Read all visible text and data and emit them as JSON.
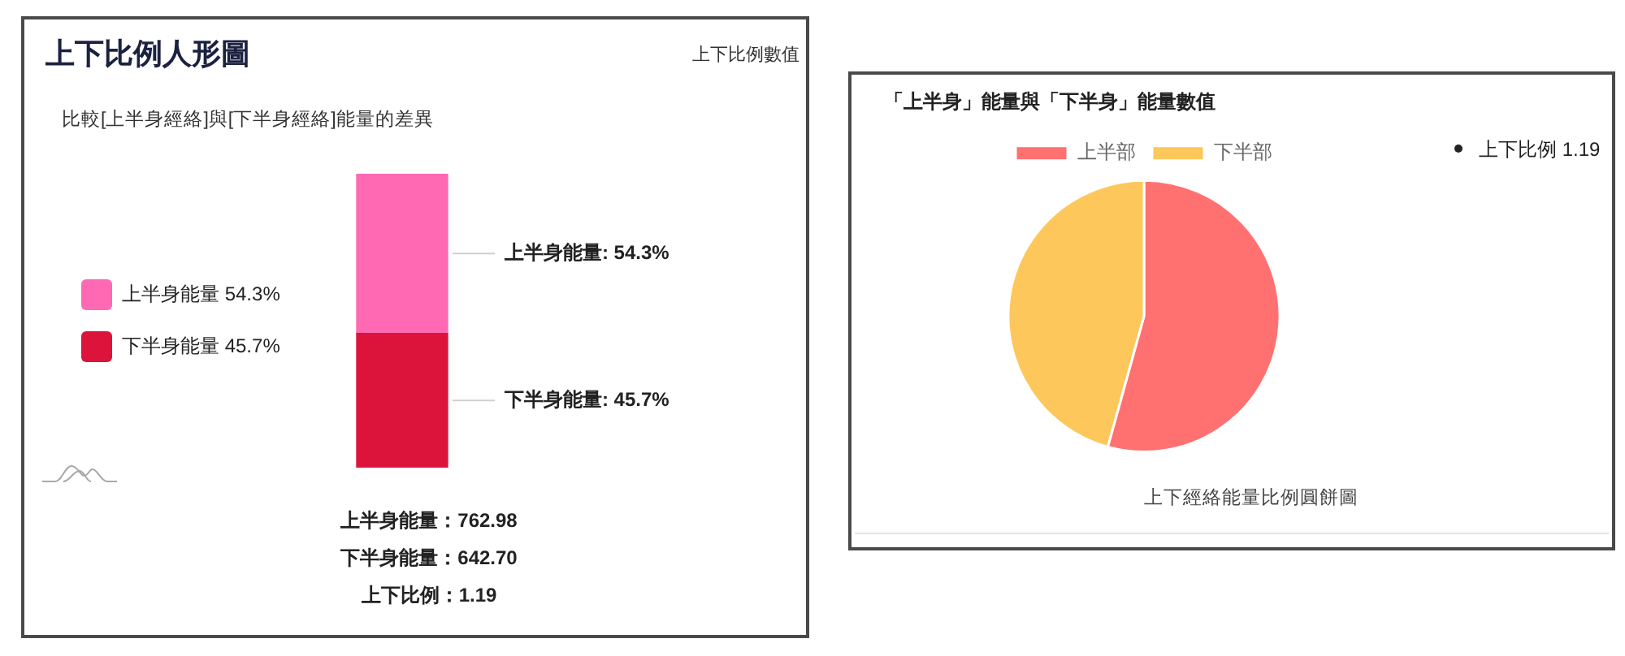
{
  "chart_data": [
    {
      "type": "bar",
      "stacked": true,
      "title": "上下比例人形圖",
      "subtitle": "比較[上半身經絡]與[下半身經絡]能量的差異",
      "categories": [
        null
      ],
      "series": [
        {
          "name": "下半身能量 45.7%",
          "color": "#dc143c",
          "values": [
            45.7
          ],
          "value_labels": [
            "下半身能量: 45.7%"
          ]
        },
        {
          "name": "上半身能量 54.3%",
          "color": "#ff69b4",
          "values": [
            54.3
          ],
          "value_labels": [
            "上半身能量: 54.3%"
          ]
        }
      ],
      "legend": "left",
      "annotations": [
        "上下比例數值",
        "上半身能量：762.98",
        "下半身能量：642.70",
        "上下比例：1.19"
      ]
    },
    {
      "type": "pie",
      "title": "「上半身」能量與「下半身」能量數值",
      "categories": [
        "上半部",
        "下半部"
      ],
      "values": [
        54.3,
        45.7
      ],
      "colors": [
        "#ff7171",
        "#fdc75b"
      ],
      "legend": "top",
      "annotations": [
        "上下比例 1.19",
        "上下經絡能量比例圓餅圖"
      ]
    }
  ]
}
